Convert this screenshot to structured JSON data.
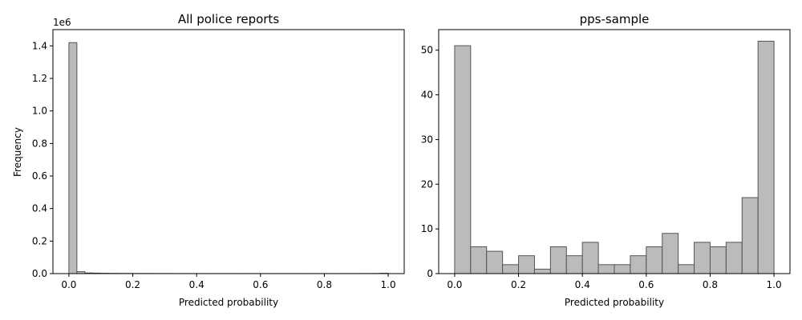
{
  "chart_data": [
    {
      "type": "bar",
      "title": "All police reports",
      "xlabel": "Predicted probability",
      "ylabel": "Frequency",
      "y_offset_label": "1e6",
      "xlim": [
        -0.05,
        1.05
      ],
      "ylim": [
        0,
        1.5
      ],
      "xticks": [
        0.0,
        0.2,
        0.4,
        0.6,
        0.8,
        1.0
      ],
      "xtick_labels": [
        "0.0",
        "0.2",
        "0.4",
        "0.6",
        "0.8",
        "1.0"
      ],
      "yticks": [
        0.0,
        0.2,
        0.4,
        0.6,
        0.8,
        1.0,
        1.2,
        1.4
      ],
      "ytick_labels": [
        "0.0",
        "0.2",
        "0.4",
        "0.6",
        "0.8",
        "1.0",
        "1.2",
        "1.4"
      ],
      "bin_edges": [
        0.0,
        0.025,
        0.05,
        0.075,
        0.1,
        0.125,
        0.15,
        0.175,
        0.2,
        0.225,
        0.25,
        0.275,
        0.3,
        0.325,
        0.35,
        0.375,
        0.4,
        0.425,
        0.45,
        0.475,
        0.5,
        0.525,
        0.55,
        0.575,
        0.6,
        0.625,
        0.65,
        0.675,
        0.7,
        0.725,
        0.75,
        0.775,
        0.8,
        0.825,
        0.85,
        0.875,
        0.9,
        0.925,
        0.95,
        0.975,
        1.0
      ],
      "values_millions": [
        1.42,
        0.012,
        0.004,
        0.003,
        0.002,
        0.0015,
        0.0012,
        0.001,
        0.0008,
        0.0007,
        0.0006,
        0.0005,
        0.0005,
        0.0004,
        0.0004,
        0.0004,
        0.0003,
        0.0003,
        0.0003,
        0.0003,
        0.0003,
        0.0003,
        0.0003,
        0.0003,
        0.0003,
        0.0003,
        0.0003,
        0.0003,
        0.0003,
        0.0003,
        0.0003,
        0.0003,
        0.0003,
        0.0003,
        0.0004,
        0.0004,
        0.0005,
        0.0006,
        0.0008,
        0.002
      ],
      "bar_fill": "#bbbbbb",
      "bar_edge": "#555555",
      "grid": false
    },
    {
      "type": "bar",
      "title": "pps-sample",
      "xlabel": "Predicted probability",
      "ylabel": "",
      "xlim": [
        -0.05,
        1.05
      ],
      "ylim": [
        0,
        54.6
      ],
      "xticks": [
        0.0,
        0.2,
        0.4,
        0.6,
        0.8,
        1.0
      ],
      "xtick_labels": [
        "0.0",
        "0.2",
        "0.4",
        "0.6",
        "0.8",
        "1.0"
      ],
      "yticks": [
        0,
        10,
        20,
        30,
        40,
        50
      ],
      "ytick_labels": [
        "0",
        "10",
        "20",
        "30",
        "40",
        "50"
      ],
      "bin_edges": [
        0.0,
        0.05,
        0.1,
        0.15,
        0.2,
        0.25,
        0.3,
        0.35,
        0.4,
        0.45,
        0.5,
        0.55,
        0.6,
        0.65,
        0.7,
        0.75,
        0.8,
        0.85,
        0.9,
        0.95,
        1.0
      ],
      "values": [
        51,
        6,
        5,
        2,
        4,
        1,
        6,
        4,
        7,
        2,
        2,
        4,
        6,
        9,
        2,
        7,
        6,
        7,
        17,
        52
      ],
      "bar_fill": "#bbbbbb",
      "bar_edge": "#555555",
      "grid": false
    }
  ]
}
